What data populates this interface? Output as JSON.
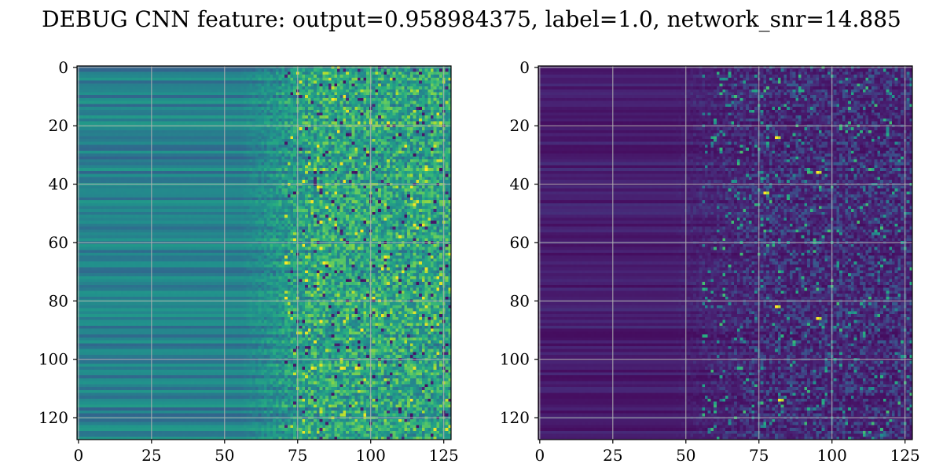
{
  "figure": {
    "title": "DEBUG CNN feature: output=0.958984375, label=1.0, network_snr=14.885"
  },
  "chart_data": [
    {
      "type": "heatmap",
      "title": "",
      "xlabel": "",
      "ylabel": "",
      "rows": 128,
      "cols": 128,
      "xlim": [
        -0.5,
        127.5
      ],
      "ylim": [
        127.5,
        -0.5
      ],
      "x_ticks": [
        0,
        25,
        50,
        75,
        100,
        125
      ],
      "y_ticks": [
        0,
        20,
        40,
        60,
        80,
        100,
        120
      ],
      "grid": true,
      "colormap": "viridis",
      "description_of_values": "columns 0-~55 are horizontally banded and smooth (mid-range teal/blue), columns ~70-127 are noisy with scattered high (yellow) values",
      "hotspots": [
        {
          "row": 11,
          "col": 87
        },
        {
          "row": 41,
          "col": 82
        },
        {
          "row": 65,
          "col": 105
        },
        {
          "row": 67,
          "col": 84
        },
        {
          "row": 103,
          "col": 80
        },
        {
          "row": 103,
          "col": 90
        },
        {
          "row": 103,
          "col": 95
        }
      ]
    },
    {
      "type": "heatmap",
      "title": "",
      "xlabel": "",
      "ylabel": "",
      "rows": 128,
      "cols": 128,
      "xlim": [
        -0.5,
        127.5
      ],
      "ylim": [
        127.5,
        -0.5
      ],
      "x_ticks": [
        0,
        25,
        50,
        75,
        100,
        125
      ],
      "y_ticks": [
        0,
        20,
        40,
        60,
        80,
        100,
        120
      ],
      "grid": true,
      "colormap": "viridis",
      "description_of_values": "mostly low (dark purple) values, faint horizontal banding on the left, sparse bright speckles in columns ~50-127",
      "hotspots": [
        {
          "row": 24,
          "col": 81
        },
        {
          "row": 36,
          "col": 95
        },
        {
          "row": 43,
          "col": 77
        },
        {
          "row": 82,
          "col": 81
        },
        {
          "row": 86,
          "col": 95
        },
        {
          "row": 114,
          "col": 82
        }
      ]
    }
  ],
  "colors": {
    "viridis_low": "#440154",
    "viridis_mid": "#21918c",
    "viridis_high": "#fde725",
    "grid": "#b0b0b0",
    "axis": "#000000"
  }
}
